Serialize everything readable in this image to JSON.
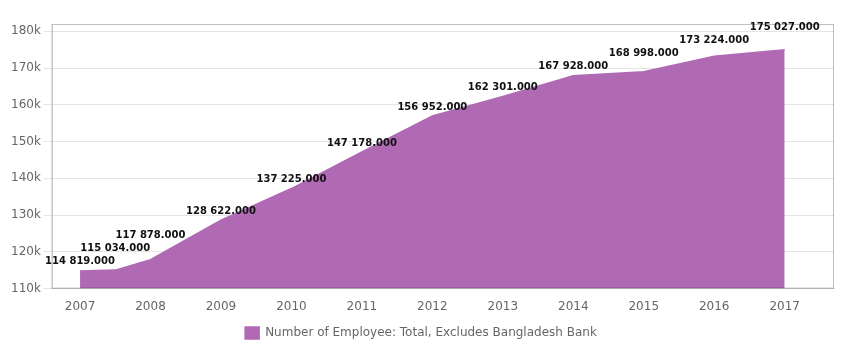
{
  "chart_data": {
    "type": "area",
    "x": [
      2007,
      2007.5,
      2008,
      2009,
      2010,
      2011,
      2012,
      2013,
      2014,
      2015,
      2016,
      2017
    ],
    "series": [
      {
        "name": "Number of Employee: Total, Excludes Bangladesh Bank",
        "color": "#b06ab3",
        "values": [
          114819,
          115034,
          117878,
          128622,
          137225,
          147178,
          156952,
          162301,
          167928,
          168998,
          173224,
          175027
        ],
        "value_labels": [
          "114 819.000",
          "115 034.000",
          "117 878.000",
          "128 622.000",
          "137 225.000",
          "147 178.000",
          "156 952.000",
          "162 301.000",
          "167 928.000",
          "168 998.000",
          "173 224.000",
          "175 027.000"
        ]
      }
    ],
    "data_labels": true,
    "xlim": [
      2006.6,
      2017.7
    ],
    "xticks": [
      2007,
      2008,
      2009,
      2010,
      2011,
      2012,
      2013,
      2014,
      2015,
      2016,
      2017
    ],
    "ylim": [
      110000,
      182000
    ],
    "yticks": [
      {
        "value": 110000,
        "label": "110k"
      },
      {
        "value": 120000,
        "label": "120k"
      },
      {
        "value": 130000,
        "label": "130k"
      },
      {
        "value": 140000,
        "label": "140k"
      },
      {
        "value": 150000,
        "label": "150k"
      },
      {
        "value": 160000,
        "label": "160k"
      },
      {
        "value": 170000,
        "label": "170k"
      },
      {
        "value": 180000,
        "label": "180k"
      }
    ],
    "grid": "y",
    "legend": "bottom"
  }
}
